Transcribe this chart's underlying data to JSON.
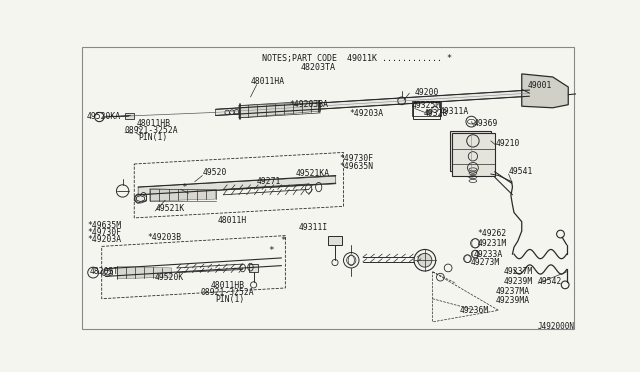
{
  "bg_color": "#f5f5f0",
  "line_color": "#2a2a2a",
  "text_color": "#1a1a1a",
  "header_text": "NOTES;PART CODE  49011K ............ *",
  "header_sub": "48203TA",
  "diagram_id": "J492000N",
  "border_color": "#888888"
}
